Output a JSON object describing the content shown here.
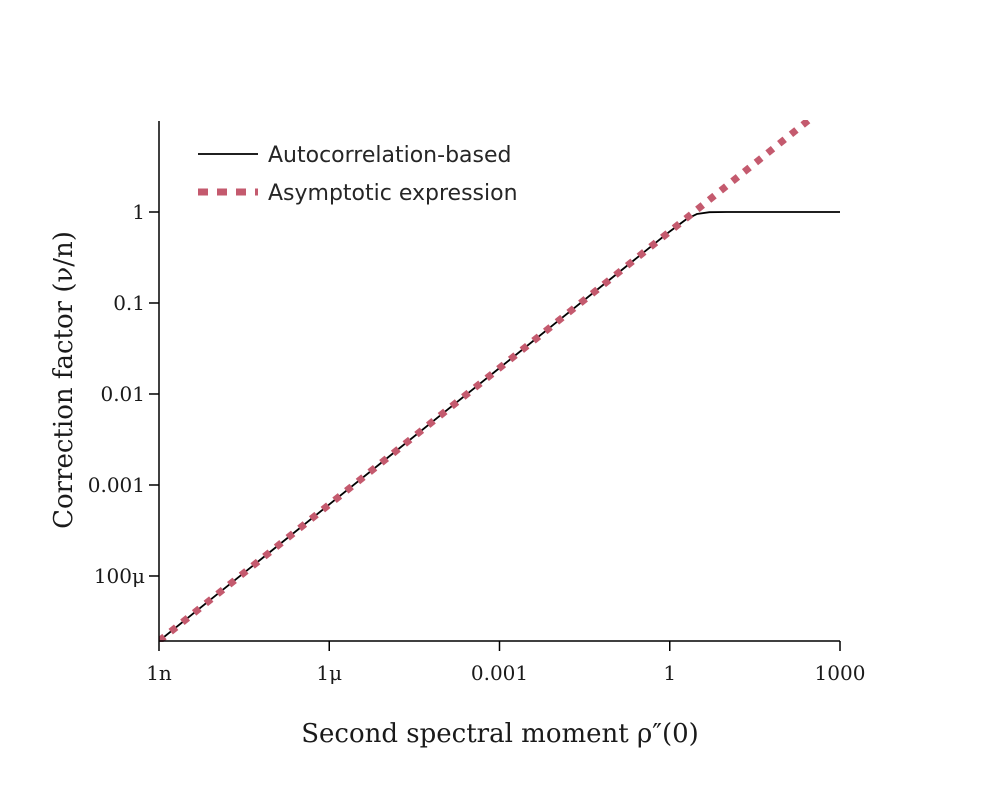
{
  "chart_data": {
    "type": "line",
    "title": "",
    "xlabel": "Second spectral moment ρ″(0)",
    "ylabel": "Correction factor (ν/n)",
    "x_scale": "log",
    "y_scale": "log",
    "xlim": [
      1e-09,
      1000
    ],
    "ylim": [
      1.93e-05,
      10
    ],
    "x_ticks": [
      {
        "value": 1e-09,
        "label": "1n"
      },
      {
        "value": 1e-06,
        "label": "1μ"
      },
      {
        "value": 0.001,
        "label": "0.001"
      },
      {
        "value": 1,
        "label": "1"
      },
      {
        "value": 1000,
        "label": "1000"
      }
    ],
    "y_ticks": [
      {
        "value": 0.0001,
        "label": "100μ"
      },
      {
        "value": 0.001,
        "label": "0.001"
      },
      {
        "value": 0.01,
        "label": "0.01"
      },
      {
        "value": 0.1,
        "label": "0.1"
      },
      {
        "value": 1,
        "label": "1"
      }
    ],
    "grid": false,
    "legend_position": "top-left",
    "series": [
      {
        "name": "Autocorrelation-based",
        "color": "#000000",
        "style": "solid",
        "x": [
          1e-09,
          1e-08,
          1e-07,
          1e-06,
          1e-05,
          0.0001,
          0.001,
          0.01,
          0.1,
          1,
          2,
          3,
          5,
          10,
          100,
          1000
        ],
        "y": [
          1.93e-05,
          6.11e-05,
          0.000193,
          0.000611,
          0.00193,
          0.00611,
          0.0193,
          0.0611,
          0.193,
          0.611,
          0.84,
          0.95,
          0.995,
          1,
          1,
          1
        ]
      },
      {
        "name": "Asymptotic expression",
        "color": "#c45a6e",
        "style": "dotted",
        "x": [
          1e-09,
          1e-08,
          1e-07,
          1e-06,
          1e-05,
          0.0001,
          0.001,
          0.01,
          0.1,
          1,
          10,
          100,
          400
        ],
        "y": [
          1.93e-05,
          6.11e-05,
          0.000193,
          0.000611,
          0.00193,
          0.00611,
          0.0193,
          0.0611,
          0.193,
          0.611,
          1.93,
          6.11,
          12.2
        ]
      }
    ]
  }
}
